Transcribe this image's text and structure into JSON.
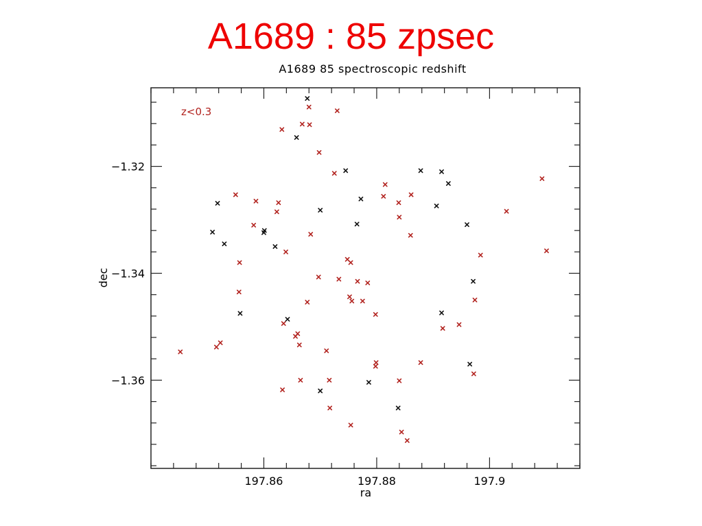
{
  "slide": {
    "title": "A1689 : 85 zpsec"
  },
  "colors": {
    "title": "#ee0000",
    "low_z": "#b2231f",
    "high_z": "#111111",
    "frame": "#222222"
  },
  "chart_data": {
    "type": "scatter",
    "title": "A1689 85 spectroscopic redshift",
    "xlabel": "ra",
    "ylabel": "dec",
    "xlim": [
      197.84,
      197.916
    ],
    "ylim": [
      -1.3765,
      -1.3053
    ],
    "x_ticks": [
      197.86,
      197.88,
      197.9
    ],
    "x_tick_labels": [
      "197.86",
      "197.88",
      "197.9"
    ],
    "y_ticks": [
      -1.32,
      -1.34,
      -1.36
    ],
    "y_tick_labels": [
      "−1.32",
      "−1.34",
      "−1.36"
    ],
    "grid": false,
    "annotation": "z<0.3",
    "series": [
      {
        "name": "z<0.3",
        "color": "#b2231f",
        "marker": "x",
        "points": [
          [
            197.8452,
            -1.3547
          ],
          [
            197.8516,
            -1.3538
          ],
          [
            197.8523,
            -1.353
          ],
          [
            197.855,
            -1.3253
          ],
          [
            197.8557,
            -1.338
          ],
          [
            197.8556,
            -1.3435
          ],
          [
            197.8582,
            -1.331
          ],
          [
            197.8586,
            -1.3265
          ],
          [
            197.8623,
            -1.3285
          ],
          [
            197.8626,
            -1.3268
          ],
          [
            197.8632,
            -1.3131
          ],
          [
            197.8635,
            -1.3494
          ],
          [
            197.8633,
            -1.3618
          ],
          [
            197.8639,
            -1.336
          ],
          [
            197.8656,
            -1.3518
          ],
          [
            197.866,
            -1.3513
          ],
          [
            197.8663,
            -1.3534
          ],
          [
            197.8665,
            -1.36
          ],
          [
            197.8668,
            -1.3121
          ],
          [
            197.8677,
            -1.3454
          ],
          [
            197.868,
            -1.3089
          ],
          [
            197.8681,
            -1.3122
          ],
          [
            197.8683,
            -1.3327
          ],
          [
            197.8697,
            -1.3407
          ],
          [
            197.8698,
            -1.3174
          ],
          [
            197.8711,
            -1.3545
          ],
          [
            197.8716,
            -1.36
          ],
          [
            197.8717,
            -1.3652
          ],
          [
            197.8725,
            -1.3213
          ],
          [
            197.873,
            -1.3096
          ],
          [
            197.8733,
            -1.3411
          ],
          [
            197.8748,
            -1.3374
          ],
          [
            197.8752,
            -1.3444
          ],
          [
            197.8754,
            -1.338
          ],
          [
            197.8756,
            -1.3452
          ],
          [
            197.8754,
            -1.3684
          ],
          [
            197.8766,
            -1.3415
          ],
          [
            197.8775,
            -1.3452
          ],
          [
            197.8784,
            -1.3418
          ],
          [
            197.8798,
            -1.3477
          ],
          [
            197.8798,
            -1.3574
          ],
          [
            197.8799,
            -1.3567
          ],
          [
            197.8812,
            -1.3256
          ],
          [
            197.8815,
            -1.3234
          ],
          [
            197.8839,
            -1.3268
          ],
          [
            197.884,
            -1.3295
          ],
          [
            197.884,
            -1.3601
          ],
          [
            197.8844,
            -1.3697
          ],
          [
            197.8854,
            -1.3713
          ],
          [
            197.886,
            -1.3329
          ],
          [
            197.8861,
            -1.3253
          ],
          [
            197.8878,
            -1.3567
          ],
          [
            197.8917,
            -1.3503
          ],
          [
            197.8946,
            -1.3496
          ],
          [
            197.8972,
            -1.3588
          ],
          [
            197.8974,
            -1.345
          ],
          [
            197.8984,
            -1.3366
          ],
          [
            197.903,
            -1.3284
          ],
          [
            197.9093,
            -1.3223
          ],
          [
            197.9101,
            -1.3358
          ]
        ]
      },
      {
        "color": "#111111",
        "marker": "x",
        "points": [
          [
            197.8509,
            -1.3323
          ],
          [
            197.8518,
            -1.3269
          ],
          [
            197.853,
            -1.3345
          ],
          [
            197.8558,
            -1.3475
          ],
          [
            197.8601,
            -1.332
          ],
          [
            197.86,
            -1.3324
          ],
          [
            197.862,
            -1.335
          ],
          [
            197.8642,
            -1.3486
          ],
          [
            197.8658,
            -1.3146
          ],
          [
            197.8677,
            -1.3073
          ],
          [
            197.87,
            -1.362
          ],
          [
            197.87,
            -1.3282
          ],
          [
            197.8745,
            -1.3208
          ],
          [
            197.8765,
            -1.3308
          ],
          [
            197.8772,
            -1.3261
          ],
          [
            197.8786,
            -1.3604
          ],
          [
            197.8838,
            -1.3652
          ],
          [
            197.8878,
            -1.3208
          ],
          [
            197.8906,
            -1.3274
          ],
          [
            197.8915,
            -1.321
          ],
          [
            197.8915,
            -1.3474
          ],
          [
            197.8927,
            -1.3232
          ],
          [
            197.896,
            -1.3309
          ],
          [
            197.8965,
            -1.357
          ],
          [
            197.8971,
            -1.3415
          ]
        ]
      }
    ]
  }
}
